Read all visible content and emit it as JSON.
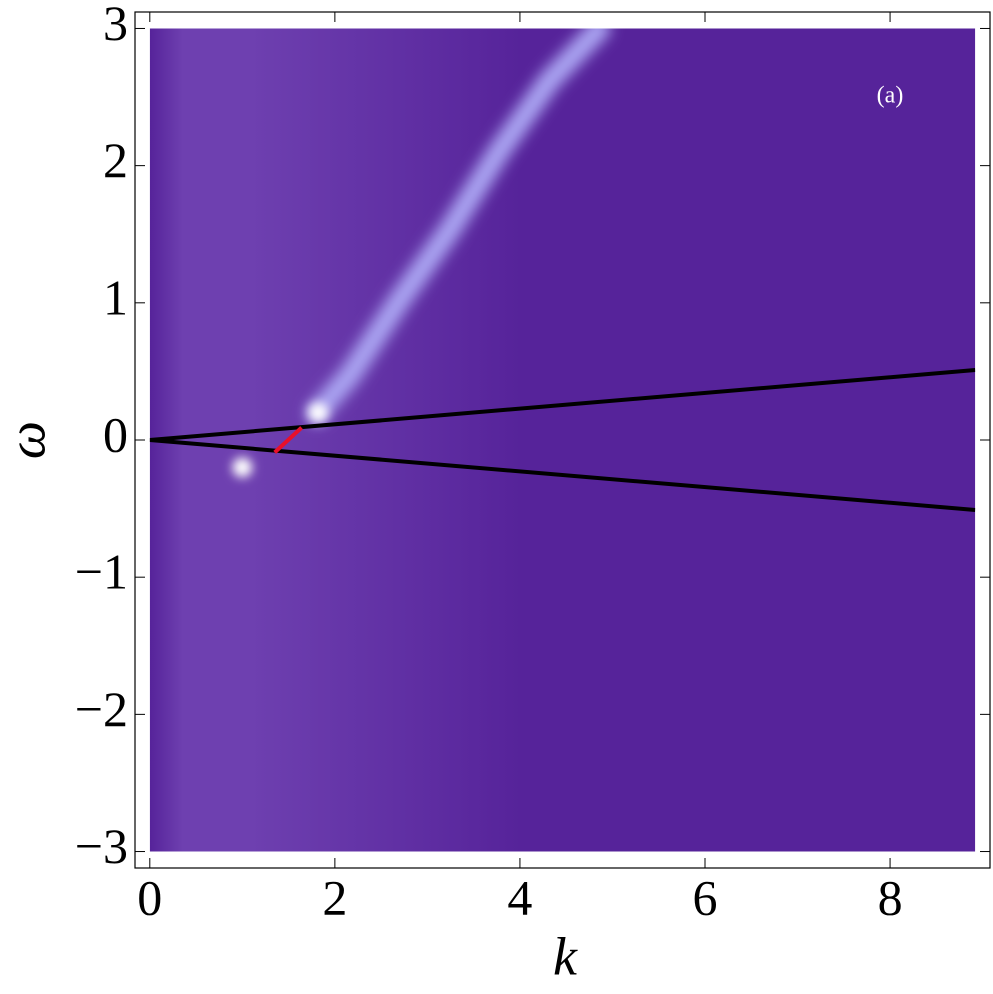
{
  "chart_data": {
    "type": "density",
    "x_label": "k",
    "y_label": "ω",
    "annotation": "(a)",
    "xlim": [
      -0.16,
      9.08
    ],
    "ylim": [
      -3.12,
      3.12
    ],
    "xticks": [
      0,
      2,
      4,
      6,
      8
    ],
    "yticks": [
      {
        "value": -3,
        "label": "−3"
      },
      {
        "value": -2,
        "label": "−2"
      },
      {
        "value": -1,
        "label": "−1"
      },
      0,
      1,
      2,
      3
    ],
    "field_x": [
      0,
      8.92
    ],
    "field_y": [
      -3,
      3
    ],
    "field_colors": [
      "#6e40b0",
      "#56239a"
    ],
    "series": [
      {
        "color": "#aaa4f2",
        "style": "glow",
        "x": [
          1.81,
          2.16,
          2.7,
          3.24,
          3.78,
          4.32,
          4.86
        ],
        "values": [
          0.2,
          0.47,
          1.02,
          1.53,
          2.11,
          2.62,
          3.0
        ]
      },
      {
        "color": "#ffffff",
        "style": "spot",
        "x": [
          1.0,
          1.82
        ],
        "values": [
          -0.2,
          0.2
        ]
      },
      {
        "color": "#000000",
        "x": [
          0,
          8.92
        ],
        "values": [
          0,
          0.51
        ]
      },
      {
        "color": "#000000",
        "x": [
          0,
          8.92
        ],
        "values": [
          0,
          -0.51
        ]
      },
      {
        "color": "#e8102a",
        "x": [
          1.35,
          1.64
        ],
        "values": [
          -0.09,
          0.09
        ]
      }
    ]
  }
}
